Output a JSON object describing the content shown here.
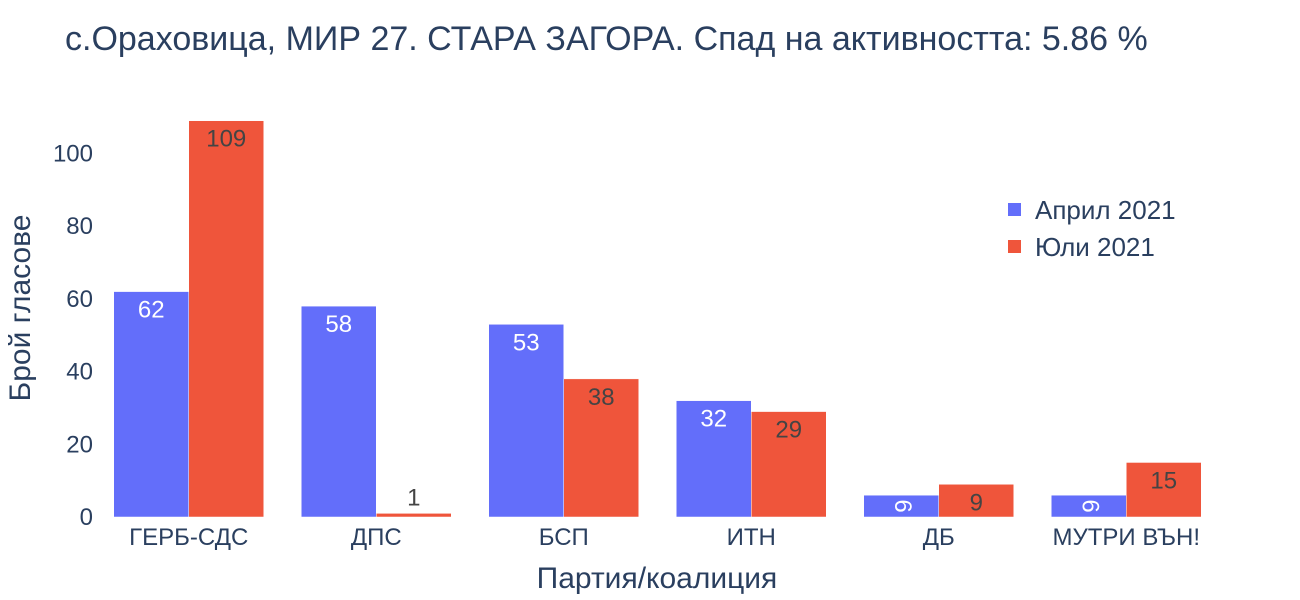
{
  "chart_data": {
    "type": "bar",
    "title": "с.Ораховица, МИР 27. СТАРА ЗАГОРА. Спад на активността: 5.86  %",
    "xlabel": "Партия/коалиция",
    "ylabel": "Брой гласове",
    "categories": [
      "ГЕРБ-СДС",
      "ДПС",
      "БСП",
      "ИТН",
      "ДБ",
      "МУТРИ ВЪН!"
    ],
    "series": [
      {
        "name": "Април 2021",
        "values": [
          62,
          58,
          53,
          32,
          6,
          6
        ],
        "color": "#636efa"
      },
      {
        "name": "Юли 2021",
        "values": [
          109,
          1,
          38,
          29,
          9,
          15
        ],
        "color": "#ef553b"
      }
    ],
    "ylim": [
      0,
      114.7
    ],
    "yticks": [
      0,
      20,
      40,
      60,
      80,
      100
    ],
    "grid": false,
    "legend_position": "top-right",
    "bar_label_position": "inside-end"
  }
}
